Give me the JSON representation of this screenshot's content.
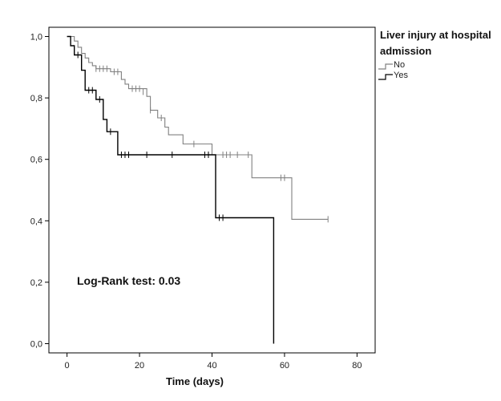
{
  "chart_data": {
    "type": "line",
    "subtype": "kaplan-meier step",
    "title": "",
    "xlabel": "Time (days)",
    "ylabel": "",
    "xlim": [
      -5,
      85
    ],
    "ylim": [
      -0.03,
      1.03
    ],
    "x_ticks": [
      0,
      20,
      40,
      60,
      80
    ],
    "x_tick_labels": [
      "0",
      "20",
      "40",
      "60",
      "80"
    ],
    "y_ticks": [
      0.0,
      0.2,
      0.4,
      0.6,
      0.8,
      1.0
    ],
    "y_tick_labels": [
      "0,0",
      "0,2",
      "0,4",
      "0,6",
      "0,8",
      "1,0"
    ],
    "grid": false,
    "legend": {
      "title_lines": [
        "Liver injury at hospital",
        "admission"
      ],
      "placement": "right"
    },
    "annotation": "Log-Rank test: 0.03",
    "series": [
      {
        "name": "No",
        "color": "#808080",
        "steps": [
          [
            0,
            1.0
          ],
          [
            2,
            0.985
          ],
          [
            3,
            0.965
          ],
          [
            4,
            0.945
          ],
          [
            5,
            0.93
          ],
          [
            6,
            0.915
          ],
          [
            7,
            0.905
          ],
          [
            8,
            0.895
          ],
          [
            12,
            0.885
          ],
          [
            15,
            0.86
          ],
          [
            16,
            0.845
          ],
          [
            17,
            0.83
          ],
          [
            22,
            0.805
          ],
          [
            23,
            0.76
          ],
          [
            25,
            0.735
          ],
          [
            27,
            0.705
          ],
          [
            28,
            0.68
          ],
          [
            32,
            0.65
          ],
          [
            40,
            0.615
          ],
          [
            51,
            0.54
          ],
          [
            62,
            0.405
          ],
          [
            72,
            0.405
          ]
        ],
        "censored": [
          [
            8,
            0.895
          ],
          [
            9,
            0.895
          ],
          [
            10,
            0.895
          ],
          [
            11,
            0.895
          ],
          [
            13,
            0.885
          ],
          [
            14,
            0.885
          ],
          [
            18,
            0.83
          ],
          [
            19,
            0.83
          ],
          [
            20,
            0.83
          ],
          [
            21,
            0.82
          ],
          [
            23,
            0.76
          ],
          [
            26,
            0.735
          ],
          [
            35,
            0.65
          ],
          [
            39,
            0.615
          ],
          [
            43,
            0.615
          ],
          [
            44,
            0.615
          ],
          [
            45,
            0.615
          ],
          [
            47,
            0.615
          ],
          [
            50,
            0.615
          ],
          [
            59,
            0.54
          ],
          [
            60,
            0.54
          ],
          [
            72,
            0.405
          ]
        ]
      },
      {
        "name": "Yes",
        "color": "#000000",
        "steps": [
          [
            0,
            1.0
          ],
          [
            1,
            0.97
          ],
          [
            2,
            0.94
          ],
          [
            4,
            0.89
          ],
          [
            5,
            0.825
          ],
          [
            8,
            0.795
          ],
          [
            10,
            0.73
          ],
          [
            11,
            0.69
          ],
          [
            14,
            0.615
          ],
          [
            41,
            0.41
          ],
          [
            57,
            0.41
          ],
          [
            57,
            0.0
          ]
        ],
        "censored": [
          [
            3,
            0.94
          ],
          [
            6,
            0.825
          ],
          [
            7,
            0.825
          ],
          [
            9,
            0.795
          ],
          [
            12,
            0.69
          ],
          [
            15,
            0.615
          ],
          [
            16,
            0.615
          ],
          [
            17,
            0.615
          ],
          [
            22,
            0.615
          ],
          [
            29,
            0.615
          ],
          [
            38,
            0.615
          ],
          [
            39,
            0.615
          ],
          [
            42,
            0.41
          ],
          [
            43,
            0.41
          ]
        ]
      }
    ]
  }
}
